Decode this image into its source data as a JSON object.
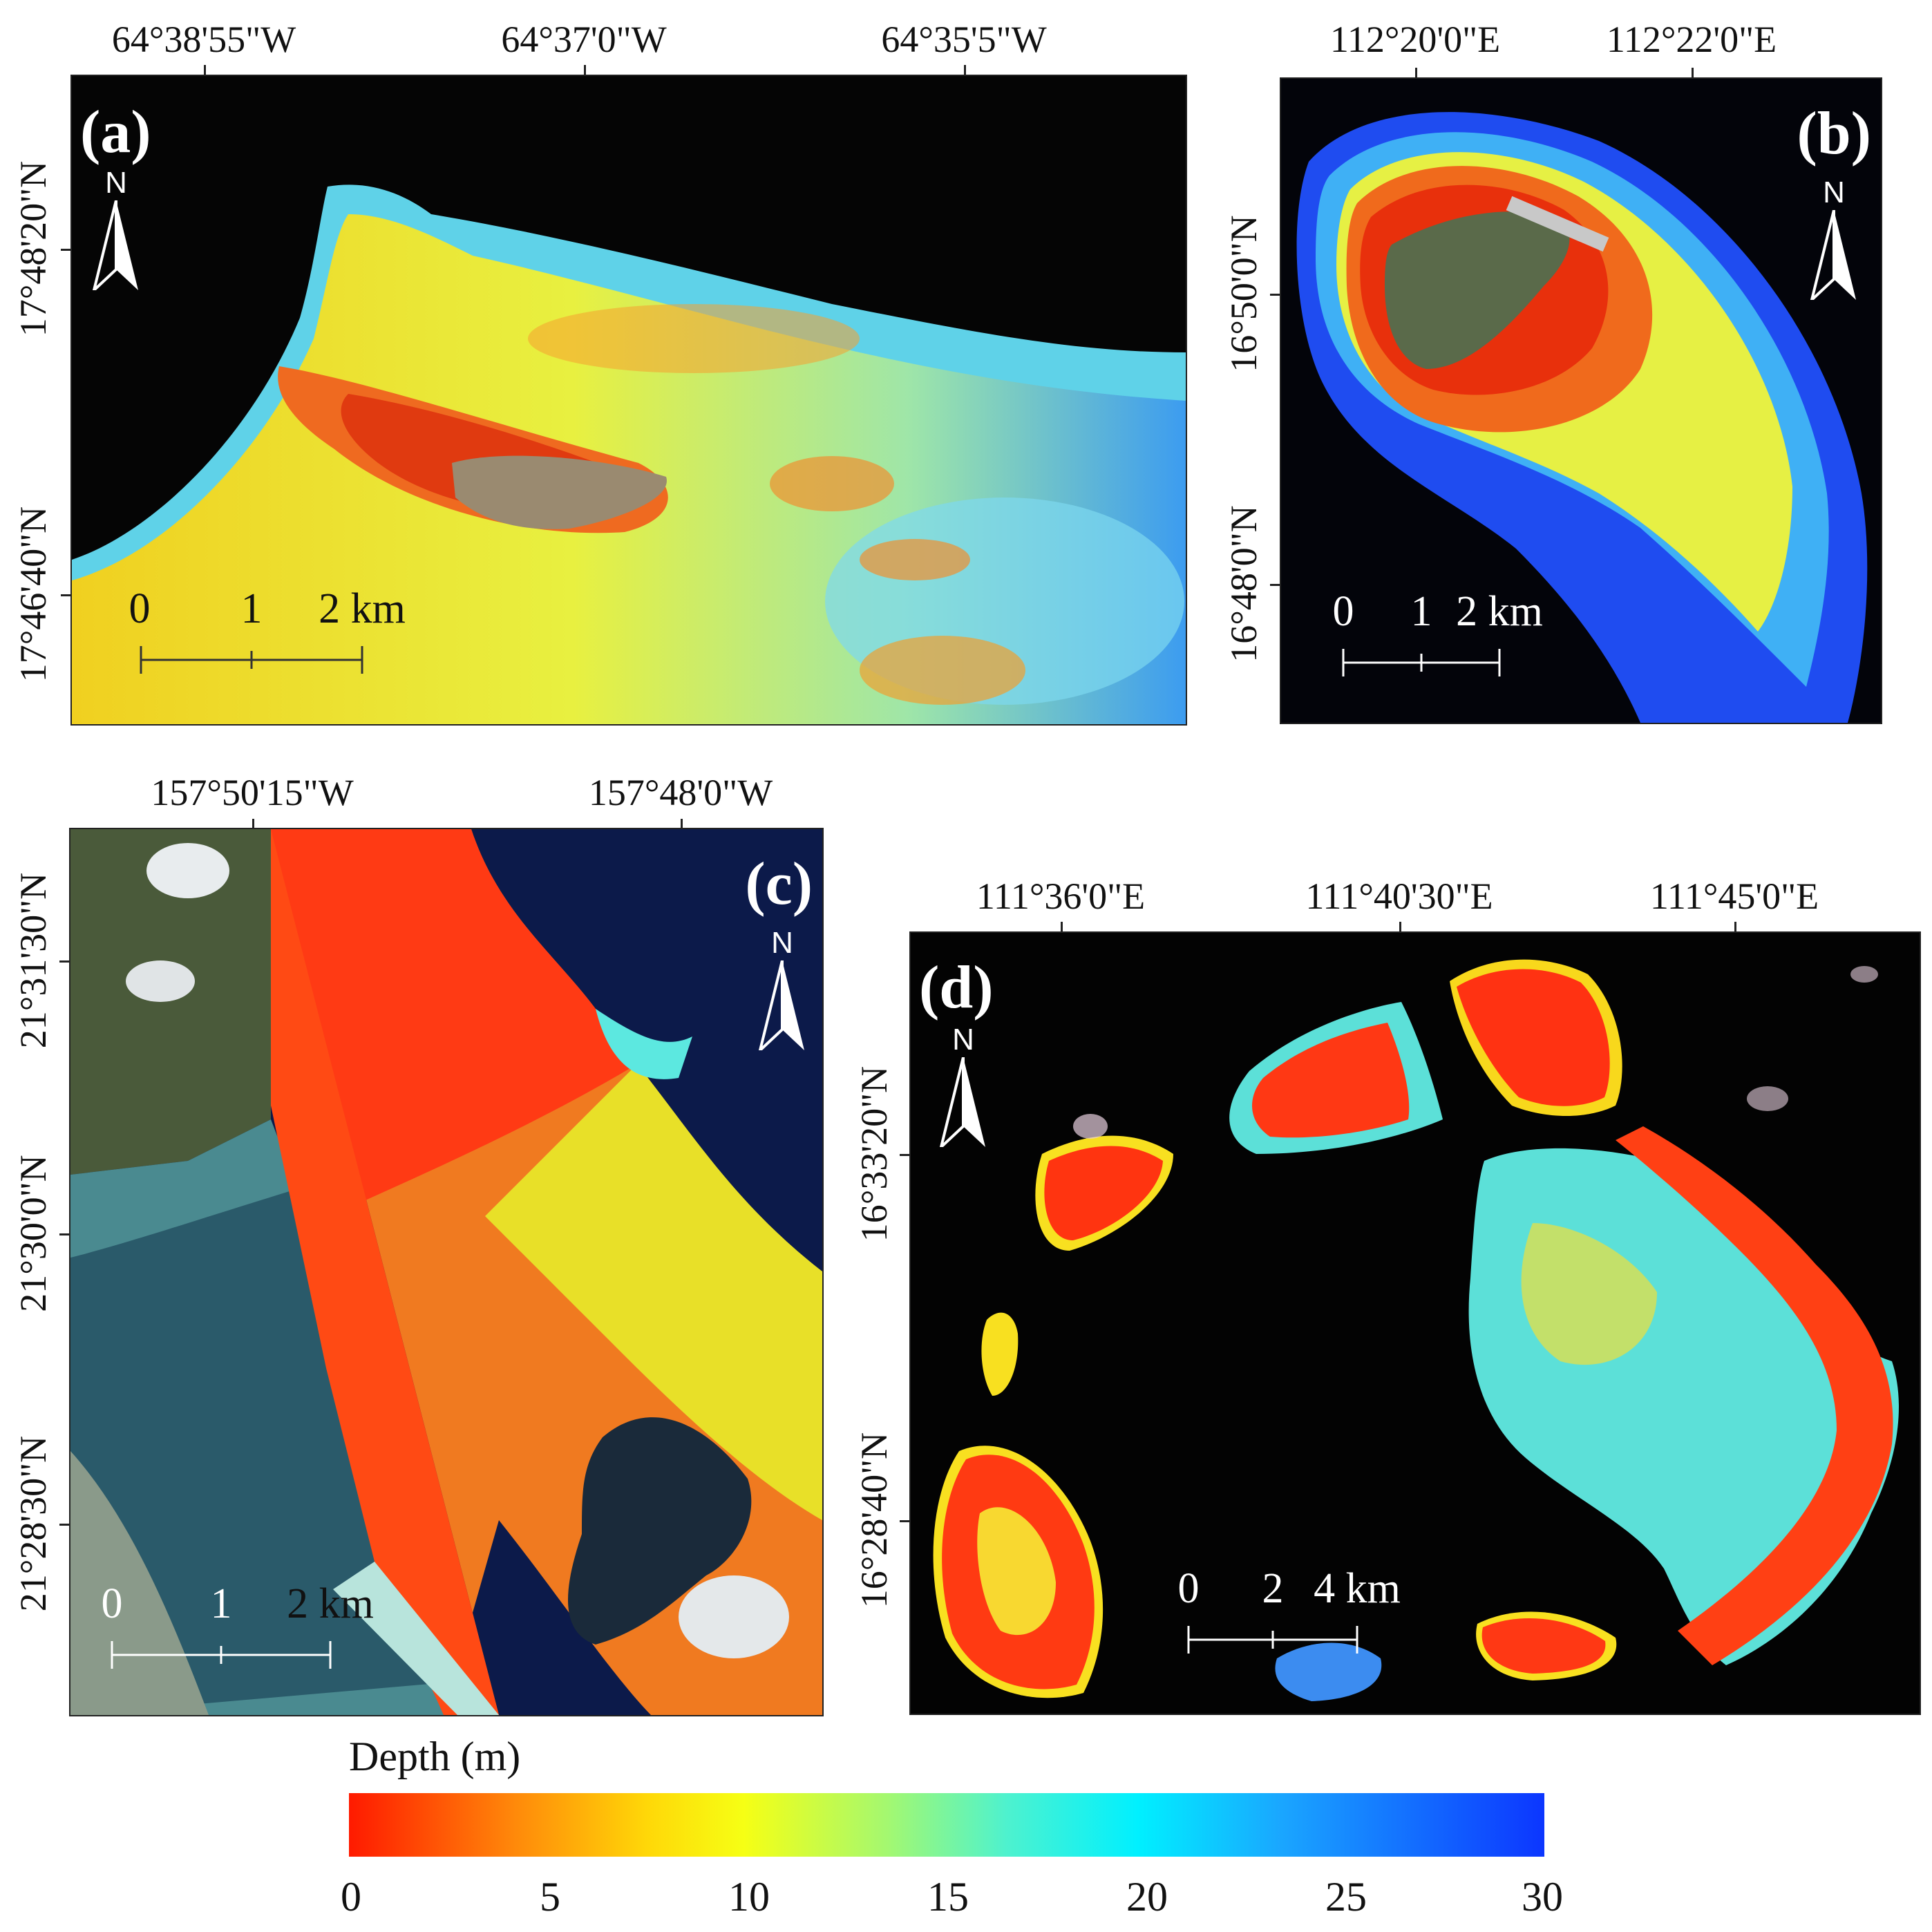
{
  "panels": {
    "a": {
      "label": "(a)",
      "top_ticks": [
        "64°38'55\"W",
        "64°37'0\"W",
        "64°35'5\"W"
      ],
      "left_ticks": [
        "17°48'20\"N",
        "17°46'40\"N"
      ],
      "north": "N",
      "scale": [
        "0",
        "1",
        "2 km"
      ]
    },
    "b": {
      "label": "(b)",
      "top_ticks": [
        "112°20'0\"E",
        "112°22'0\"E"
      ],
      "left_ticks": [
        "16°50'0\"N",
        "16°48'0\"N"
      ],
      "north": "N",
      "scale": [
        "0",
        "1",
        "2 km"
      ]
    },
    "c": {
      "label": "(c)",
      "top_ticks": [
        "157°50'15\"W",
        "157°48'0\"W"
      ],
      "left_ticks": [
        "21°31'30\"N",
        "21°30'0\"N",
        "21°28'30\"N"
      ],
      "north": "N",
      "scale": [
        "0",
        "1",
        "2 km"
      ]
    },
    "d": {
      "label": "(d)",
      "top_ticks": [
        "111°36'0\"E",
        "111°40'30\"E",
        "111°45'0\"E"
      ],
      "left_ticks": [
        "16°33'20\"N",
        "16°28'40\"N"
      ],
      "north": "N",
      "scale": [
        "0",
        "2",
        "4 km"
      ]
    }
  },
  "colorbar": {
    "title": "Depth (m)",
    "ticks": [
      "0",
      "5",
      "10",
      "15",
      "20",
      "25",
      "30"
    ],
    "range": [
      0,
      30
    ],
    "colors": [
      "#ff1a00",
      "#ffd808",
      "#00f0ff",
      "#0c36ff"
    ]
  }
}
